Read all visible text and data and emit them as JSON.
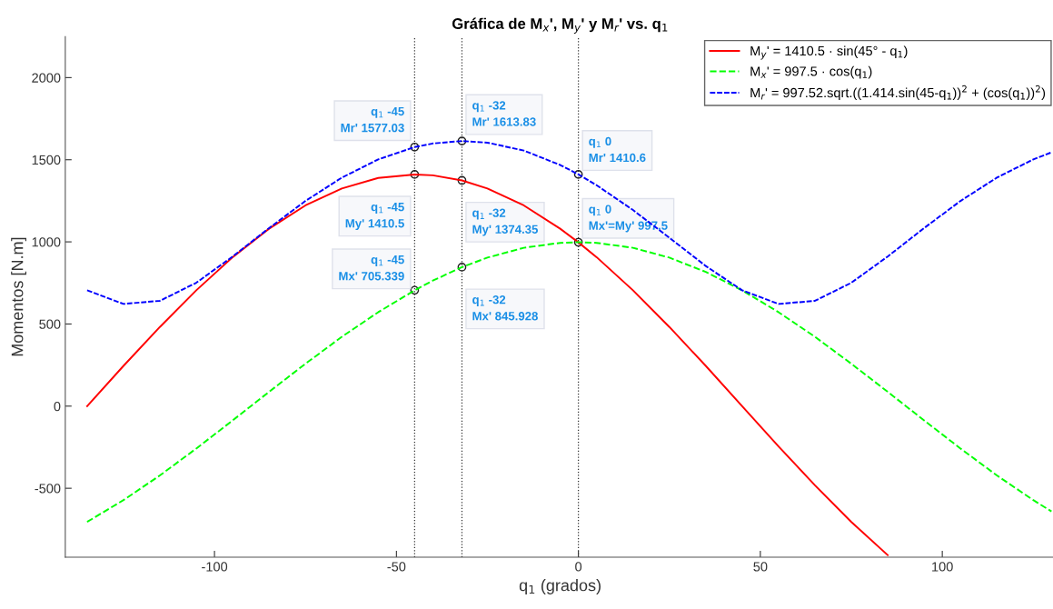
{
  "chart_data": {
    "type": "line",
    "title": "Gráfica de M$_{x}$', M$_{y}$' y M$_{r}$' vs. q$_{1}$",
    "xlabel": "q$_{1}$ (grados)",
    "ylabel": "Momentos [N.m]",
    "x": [
      -135,
      -125,
      -115,
      -105,
      -95,
      -85,
      -75,
      -65,
      -55,
      -45,
      -40,
      -32,
      -25,
      -15,
      -5,
      0,
      5,
      15,
      25,
      35,
      45,
      55,
      65,
      75,
      85,
      95,
      105,
      115,
      125,
      130
    ],
    "series": [
      {
        "name": "M$_{y}$' = 1410.5 · sin(45° - q$_{1}$)",
        "color": "#ff0000",
        "line_style": "solid",
        "values": [
          0,
          245,
          482,
          705,
          907,
          1080,
          1222,
          1325,
          1389,
          1410,
          1405,
          1374,
          1325,
          1222,
          1080,
          997,
          907,
          705,
          482,
          245,
          0,
          -245,
          -482,
          -705,
          -907,
          null,
          null,
          null,
          null,
          null
        ]
      },
      {
        "name": "M$_{x}$' = 997.5 · cos(q$_{1}$)",
        "color": "#00ff00",
        "line_style": "dashed",
        "values": [
          -705,
          -572,
          -422,
          -258,
          -87,
          87,
          258,
          422,
          572,
          705,
          764,
          846,
          904,
          964,
          994,
          998,
          994,
          964,
          904,
          817,
          705,
          572,
          422,
          258,
          87,
          -87,
          -258,
          -422,
          -572,
          -641
        ]
      },
      {
        "name": "M$_{r}$' = 997.52.sqrt.((1.414.sin(45-q$_{1}$))$^{2}$ + (cos(q$_{1}$))$^{2}$)",
        "color": "#0000ff",
        "line_style": "dotted",
        "values": [
          705,
          622,
          641,
          751,
          911,
          1084,
          1249,
          1391,
          1502,
          1577,
          1599,
          1614,
          1604,
          1556,
          1468,
          1411,
          1345,
          1194,
          1025,
          853,
          705,
          622,
          641,
          751,
          911,
          1084,
          1249,
          1391,
          1502,
          1545
        ]
      }
    ],
    "xlim": [
      -141,
      131
    ],
    "xticks": [
      -100,
      -50,
      0,
      50,
      100
    ],
    "ylim": [
      -920,
      2250
    ],
    "yticks": [
      -500,
      0,
      500,
      1000,
      1500,
      2000
    ],
    "ref_lines": [
      {
        "axis": "x",
        "value": -45,
        "color": "#333333",
        "line_style": "dotted"
      },
      {
        "axis": "x",
        "value": -32,
        "color": "#333333",
        "line_style": "dotted"
      },
      {
        "axis": "x",
        "value": 0,
        "color": "#333333",
        "line_style": "dotted"
      }
    ],
    "annotations": [
      {
        "text": "q$_{1}$ -45\nMr' 1577.03",
        "x": -45,
        "y": 1577.03
      },
      {
        "text": "q$_{1}$ -32\nMr' 1613.83",
        "x": -32,
        "y": 1613.83
      },
      {
        "text": "q$_{1}$ 0\nMr' 1410.6",
        "x": 0,
        "y": 1410.6
      },
      {
        "text": "q$_{1}$ -45\nMy' 1410.5",
        "x": -45,
        "y": 1410.5
      },
      {
        "text": "q$_{1}$ -32\nMy' 1374.35",
        "x": -32,
        "y": 1374.35
      },
      {
        "text": "q$_{1}$ 0\nMx'=My' 997.5",
        "x": 0,
        "y": 997.5
      },
      {
        "text": "q$_{1}$ -45\nMx' 705.339",
        "x": -45,
        "y": 705.339
      },
      {
        "text": "q$_{1}$ -32\nMx' 845.928",
        "x": -32,
        "y": 845.928
      }
    ],
    "grid": false,
    "legend": "top right",
    "marker": "none"
  }
}
